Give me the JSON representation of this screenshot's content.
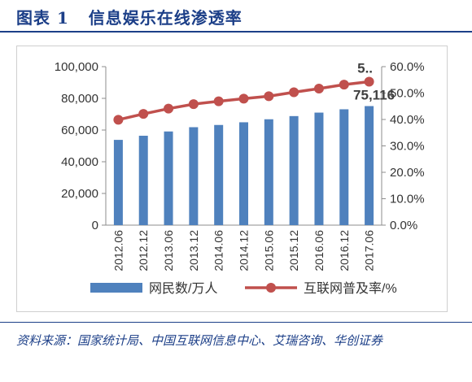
{
  "figure": {
    "title": "图表 1   信息娱乐在线渗透率",
    "source": "资料来源：国家统计局、中国互联网信息中心、艾瑞咨询、华创证券"
  },
  "chart_data": {
    "type": "bar+line",
    "categories": [
      "2012.06",
      "2012.12",
      "2013.06",
      "2013.12",
      "2014.06",
      "2014.12",
      "2015.06",
      "2015.12",
      "2016.06",
      "2016.12",
      "2017.06"
    ],
    "series": [
      {
        "name": "网民数/万人",
        "type": "bar",
        "axis": "left",
        "color": "#4f81bd",
        "values": [
          53800,
          56400,
          59100,
          61800,
          63200,
          64900,
          66800,
          68800,
          71000,
          73100,
          75116
        ]
      },
      {
        "name": "互联网普及率/%",
        "type": "line",
        "axis": "right",
        "color": "#c0504d",
        "values": [
          39.9,
          42.1,
          44.1,
          45.8,
          46.9,
          47.9,
          48.8,
          50.3,
          51.7,
          53.2,
          54.3
        ]
      }
    ],
    "left_axis": {
      "min": 0,
      "max": 100000,
      "ticks": [
        "0",
        "20,000",
        "40,000",
        "60,000",
        "80,000",
        "100,000"
      ]
    },
    "right_axis": {
      "min": 0,
      "max": 60,
      "ticks": [
        "0.0%",
        "10.0%",
        "20.0%",
        "30.0%",
        "40.0%",
        "50.0%",
        "60.0%"
      ]
    },
    "data_labels": [
      {
        "series": 0,
        "index": 10,
        "text": "75,116"
      },
      {
        "series": 1,
        "index": 10,
        "text": "5.."
      }
    ],
    "legend_position": "bottom",
    "grid": false
  }
}
